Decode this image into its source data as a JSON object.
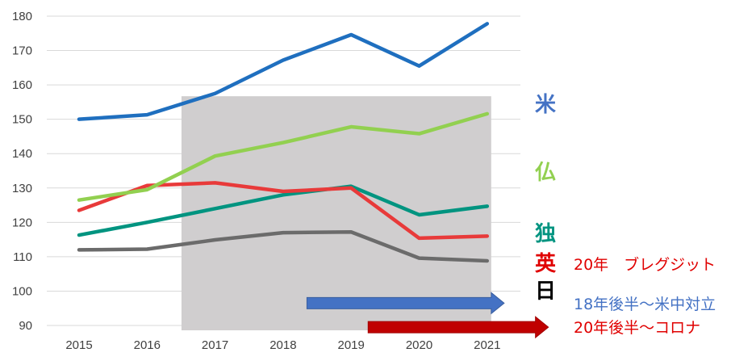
{
  "chart_data": {
    "type": "line",
    "x": [
      2015,
      2016,
      2017,
      2018,
      2019,
      2020,
      2021
    ],
    "categories": [
      "2015",
      "2016",
      "2017",
      "2018",
      "2019",
      "2020",
      "2021"
    ],
    "ylim": [
      90,
      180
    ],
    "yticks": [
      "90",
      "100",
      "110",
      "120",
      "130",
      "140",
      "150",
      "160",
      "170",
      "180"
    ],
    "grid": true,
    "shaded_range": [
      2016.5,
      2021
    ],
    "series": [
      {
        "name": "米",
        "color": "#1f6fbf",
        "values": [
          150,
          151.3,
          157.5,
          167.2,
          174.6,
          165.5,
          177.8
        ]
      },
      {
        "name": "仏",
        "color": "#92d050",
        "values": [
          126.5,
          129.5,
          139.3,
          143.2,
          147.8,
          145.8,
          151.6
        ]
      },
      {
        "name": "独",
        "color": "#009480",
        "values": [
          116.3,
          120,
          124,
          128,
          130.5,
          122.2,
          124.7
        ]
      },
      {
        "name": "英",
        "color": "#e83a3a",
        "values": [
          123.5,
          130.7,
          131.5,
          129,
          130,
          115.4,
          116
        ]
      },
      {
        "name": "日",
        "color": "#6b6b6b",
        "values": [
          112,
          112.2,
          114.9,
          117,
          117.2,
          109.6,
          108.8
        ]
      }
    ],
    "label_colors": [
      "#4472c4",
      "#92d050",
      "#009480",
      "#e00000",
      "#000000"
    ],
    "annotations": [
      {
        "text": "20年　ブレグジット",
        "color": "#e00000"
      },
      {
        "text": "18年後半～米中対立",
        "color": "#4472c4",
        "arrow_color": "#4472c4",
        "arrow_x": [
          2018.35,
          2021.25
        ],
        "arrow_y": 96.5
      },
      {
        "text": "20年後半～コロナ",
        "color": "#e00000",
        "arrow_color": "#c00000",
        "arrow_x": [
          2019.25,
          2021.9
        ],
        "arrow_y": 89.5
      }
    ]
  }
}
